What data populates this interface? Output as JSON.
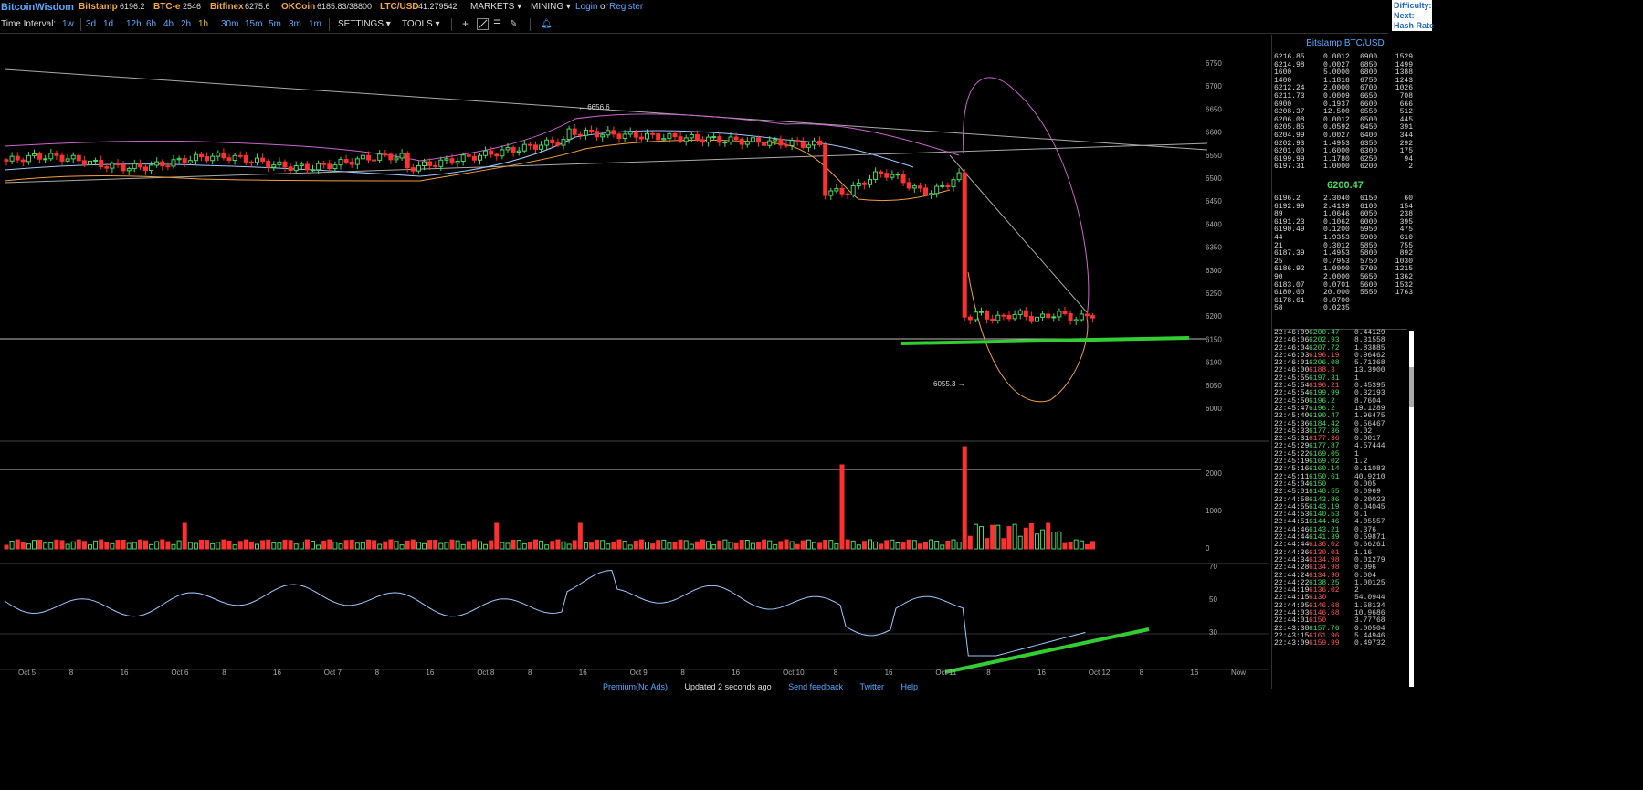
{
  "topbar": {
    "brand": "BitcoinWisdom",
    "markets": [
      {
        "name": "Bitstamp",
        "value": "6196.2"
      },
      {
        "name": "BTC-e",
        "value": "2546"
      },
      {
        "name": "Bitfinex",
        "value": "6275.6"
      },
      {
        "name": "OKCoin",
        "value": "6185.83/38800"
      },
      {
        "name": "LTC/USD",
        "value": "41.279542"
      }
    ],
    "menu_markets": "MARKETS",
    "menu_mining": "MINING",
    "login": "Login",
    "or": "or",
    "register": "Register",
    "right_labels": [
      "Difficulty:",
      "Next:",
      "Hash Rate"
    ]
  },
  "toolbar": {
    "time_interval_label": "Time Interval:",
    "intervals": [
      "1w",
      "3d",
      "1d",
      "12h",
      "6h",
      "4h",
      "2h",
      "1h",
      "30m",
      "15m",
      "5m",
      "3m",
      "1m"
    ],
    "selected_interval": "1h",
    "settings": "SETTINGS",
    "tools": "TOOLS"
  },
  "chart": {
    "price_axis": [
      "6750",
      "6700",
      "6650",
      "6600",
      "6550",
      "6500",
      "6450",
      "6400",
      "6350",
      "6300",
      "6250",
      "6200",
      "6150",
      "6100",
      "6050",
      "6000"
    ],
    "volume_axis": [
      "2000",
      "1000",
      "0"
    ],
    "indicator_axis": [
      "70",
      "50",
      "30"
    ],
    "x_labels": [
      "Oct 5",
      "8",
      "16",
      "Oct 6",
      "8",
      "16",
      "Oct 7",
      "8",
      "16",
      "Oct 8",
      "8",
      "16",
      "Oct 9",
      "8",
      "16",
      "Oct 10",
      "8",
      "16",
      "Oct 11",
      "8",
      "16",
      "Oct 12",
      "8",
      "16",
      "Now"
    ],
    "high_marker": "← 6656.6",
    "low_marker": "6055.3 →",
    "colors": {
      "up": "#4cd964",
      "down": "#ff3030",
      "ma_upper": "#cc66cc",
      "ma_lower": "#f0a040",
      "ma_mid": "#a0c8ff",
      "annotation": "#33cc33"
    }
  },
  "panel": {
    "title": "Bitstamp BTC/USD",
    "asks": [
      [
        "6216.85",
        "0.0012",
        "6900",
        "1529"
      ],
      [
        "6214.98",
        "0.0027",
        "6850",
        "1499"
      ],
      [
        "1600",
        "5.0000",
        "6800",
        "1388"
      ],
      [
        "1400",
        "1.1816",
        "6750",
        "1243"
      ],
      [
        "6212.24",
        "2.0000",
        "6700",
        "1026"
      ],
      [
        "6211.73",
        "0.0009",
        "6650",
        "708"
      ],
      [
        "6900",
        "0.1937",
        "6600",
        "666"
      ],
      [
        "6208.37",
        "12.500",
        "6550",
        "512"
      ],
      [
        "6206.08",
        "0.0012",
        "6500",
        "445"
      ],
      [
        "6205.85",
        "0.0592",
        "6450",
        "391"
      ],
      [
        "6204.99",
        "0.0027",
        "6400",
        "344"
      ],
      [
        "6202.93",
        "1.4953",
        "6350",
        "292"
      ],
      [
        "6201.00",
        "1.6000",
        "6300",
        "175"
      ],
      [
        "6199.99",
        "1.1780",
        "6250",
        "94"
      ],
      [
        "6197.31",
        "1.0000",
        "6200",
        "2"
      ]
    ],
    "last_price": "6200.47",
    "bids": [
      [
        "6196.2",
        "2.3040",
        "6150",
        "60"
      ],
      [
        "6192.99",
        "2.4139",
        "6100",
        "154"
      ],
      [
        "89",
        "1.0646",
        "6050",
        "238"
      ],
      [
        "6191.23",
        "0.1062",
        "6000",
        "395"
      ],
      [
        "6190.49",
        "0.1200",
        "5950",
        "475"
      ],
      [
        "44",
        "1.9353",
        "5900",
        "610"
      ],
      [
        "21",
        "0.3012",
        "5850",
        "755"
      ],
      [
        "6187.39",
        "1.4953",
        "5800",
        "892"
      ],
      [
        "25",
        "0.7953",
        "5750",
        "1030"
      ],
      [
        "6186.92",
        "1.0000",
        "5700",
        "1215"
      ],
      [
        "90",
        "2.0000",
        "5650",
        "1362"
      ],
      [
        "6183.07",
        "0.0701",
        "5600",
        "1532"
      ],
      [
        "6180.00",
        "20.000",
        "5550",
        "1763"
      ],
      [
        "6178.61",
        "0.0700",
        "",
        ""
      ],
      [
        "58",
        "0.0235",
        "",
        ""
      ]
    ],
    "trades": [
      [
        "22:46:09",
        "6200.47",
        "up",
        "0.44129"
      ],
      [
        "22:46:06",
        "6202.93",
        "up",
        "8.31558"
      ],
      [
        "22:46:04",
        "6207.72",
        "up",
        "1.83885"
      ],
      [
        "22:46:03",
        "6196.19",
        "dn",
        "0.96462"
      ],
      [
        "22:46:01",
        "6206.08",
        "up",
        "5.71368"
      ],
      [
        "22:46:00",
        "6188.3",
        "dn",
        "13.3900"
      ],
      [
        "22:45:55",
        "6197.31",
        "up",
        "1"
      ],
      [
        "22:45:54",
        "6196.21",
        "dn",
        "0.45395"
      ],
      [
        "22:45:54",
        "6199.99",
        "up",
        "0.32193"
      ],
      [
        "22:45:50",
        "6196.2",
        "up",
        "8.7604"
      ],
      [
        "22:45:47",
        "6196.2",
        "up",
        "19.1289"
      ],
      [
        "22:45:40",
        "6190.47",
        "up",
        "1.96475"
      ],
      [
        "22:45:36",
        "6184.42",
        "up",
        "0.56467"
      ],
      [
        "22:45:33",
        "6177.36",
        "up",
        "0.02"
      ],
      [
        "22:45:31",
        "6177.36",
        "dn",
        "0.0017"
      ],
      [
        "22:45:29",
        "6177.87",
        "up",
        "4.57444"
      ],
      [
        "22:45:22",
        "6169.05",
        "up",
        "1"
      ],
      [
        "22:45:19",
        "6169.02",
        "up",
        "1.2"
      ],
      [
        "22:45:16",
        "6160.14",
        "up",
        "0.11083"
      ],
      [
        "22:45:11",
        "6150.61",
        "up",
        "40.9210"
      ],
      [
        "22:45:04",
        "6150",
        "up",
        "0.005"
      ],
      [
        "22:45:01",
        "6148.55",
        "up",
        "0.0969"
      ],
      [
        "22:44:58",
        "6143.86",
        "up",
        "0.20023"
      ],
      [
        "22:44:55",
        "6143.19",
        "up",
        "0.04045"
      ],
      [
        "22:44:53",
        "6140.53",
        "up",
        "0.1"
      ],
      [
        "22:44:51",
        "6144.46",
        "up",
        "4.05557"
      ],
      [
        "22:44:46",
        "6143.21",
        "up",
        "0.376"
      ],
      [
        "22:44:44",
        "6141.39",
        "up",
        "0.59871"
      ],
      [
        "22:44:44",
        "6136.02",
        "dn",
        "0.66261"
      ],
      [
        "22:44:36",
        "6130.01",
        "dn",
        "1.16"
      ],
      [
        "22:44:34",
        "6134.98",
        "dn",
        "0.01279"
      ],
      [
        "22:44:28",
        "6134.98",
        "dn",
        "0.096"
      ],
      [
        "22:44:24",
        "6134.98",
        "dn",
        "0.004"
      ],
      [
        "22:44:22",
        "6138.25",
        "up",
        "1.00125"
      ],
      [
        "22:44:19",
        "6136.02",
        "dn",
        "2"
      ],
      [
        "22:44:15",
        "6130",
        "dn",
        "54.0944"
      ],
      [
        "22:44:05",
        "6146.68",
        "dn",
        "1.58134"
      ],
      [
        "22:44:03",
        "6146.68",
        "dn",
        "10.9686"
      ],
      [
        "22:44:01",
        "6150",
        "dn",
        "3.77768"
      ],
      [
        "22:43:38",
        "6157.76",
        "up",
        "0.00504"
      ],
      [
        "22:43:15",
        "6161.96",
        "dn",
        "5.44946"
      ],
      [
        "22:43:09",
        "6159.99",
        "dn",
        "0.49732"
      ]
    ]
  },
  "footer": {
    "links": [
      "Premium(No Ads)",
      "Updated 2 seconds ago",
      "Send feedback",
      "Twitter",
      "Help"
    ]
  }
}
